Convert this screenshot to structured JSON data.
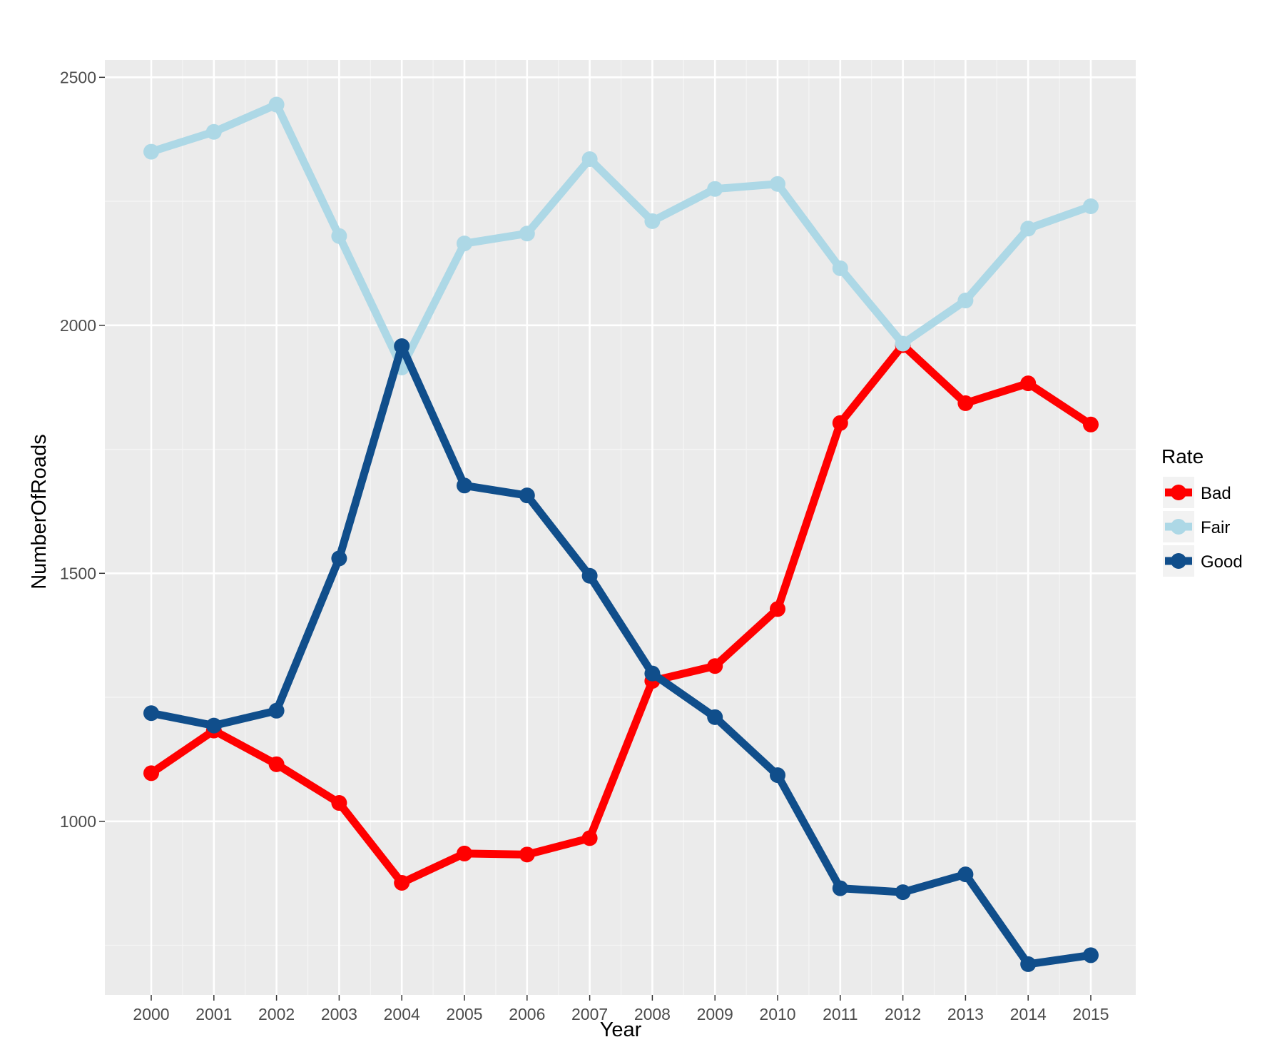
{
  "chart_data": {
    "type": "line",
    "xlabel": "Year",
    "ylabel": "NumberOfRoads",
    "categories": [
      "2000",
      "2001",
      "2002",
      "2003",
      "2004",
      "2005",
      "2006",
      "2007",
      "2008",
      "2009",
      "2010",
      "2011",
      "2012",
      "2013",
      "2014",
      "2015"
    ],
    "ylim": [
      650,
      2535
    ],
    "yticks": [
      1000,
      1500,
      2000,
      2500
    ],
    "grid": true,
    "legend": {
      "title": "Rate",
      "position": "right"
    },
    "series": [
      {
        "name": "Bad",
        "color": "#ff0000",
        "values": [
          1097,
          1183,
          1115,
          1037,
          876,
          935,
          933,
          966,
          1283,
          1313,
          1428,
          1803,
          1960,
          1843,
          1883,
          1800
        ]
      },
      {
        "name": "Fair",
        "color": "#add8e6",
        "values": [
          2350,
          2390,
          2445,
          2180,
          1915,
          2165,
          2185,
          2335,
          2210,
          2275,
          2285,
          2115,
          1963,
          2050,
          2195,
          2240
        ]
      },
      {
        "name": "Good",
        "color": "#104e8b",
        "values": [
          1218,
          1193,
          1223,
          1530,
          1958,
          1677,
          1657,
          1495,
          1298,
          1210,
          1093,
          865,
          857,
          893,
          712,
          730
        ]
      }
    ]
  }
}
